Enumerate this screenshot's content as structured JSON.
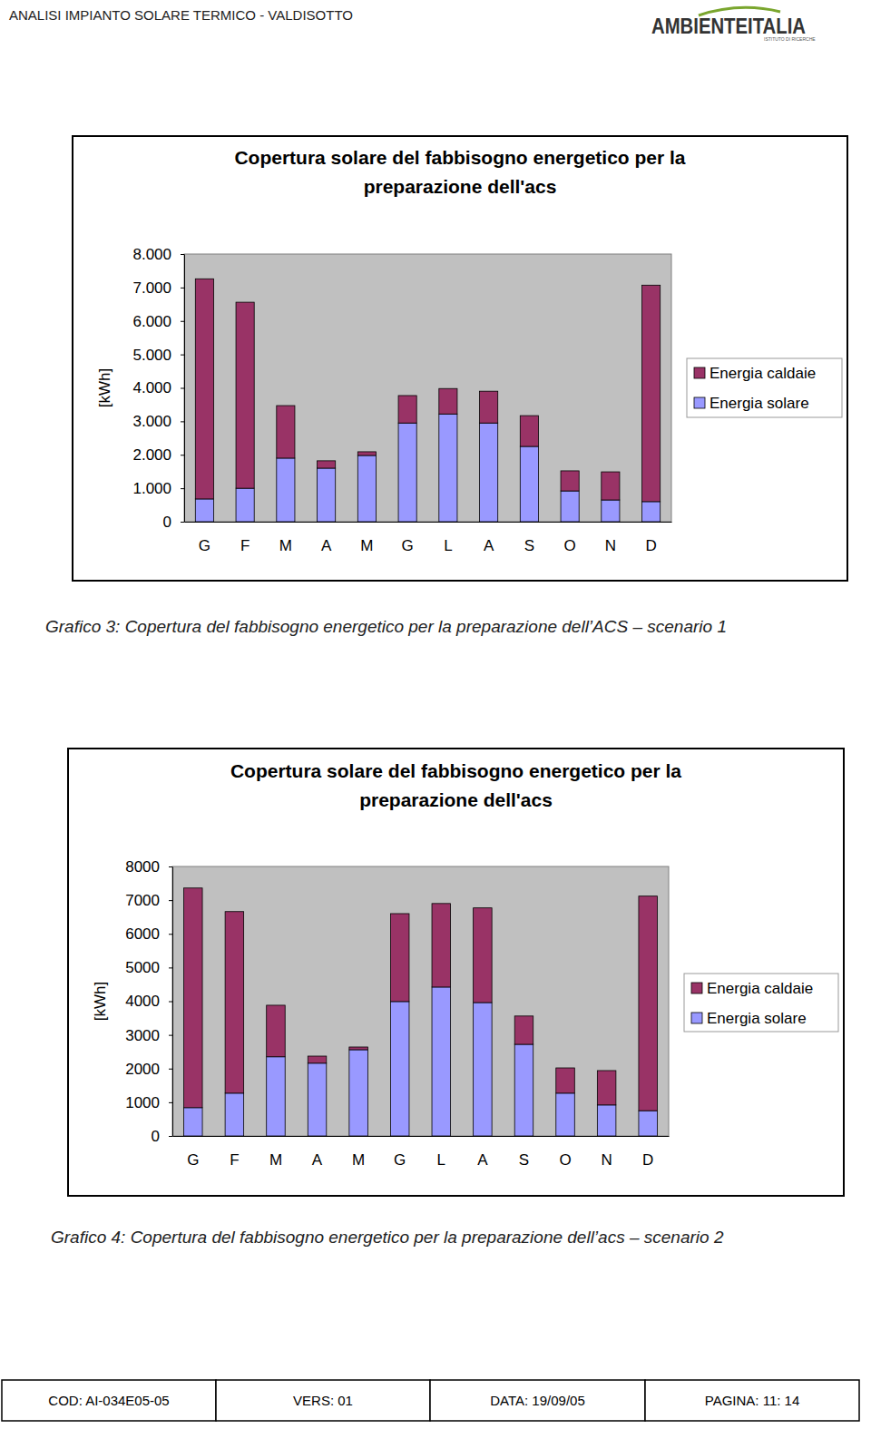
{
  "header": {
    "title": "ANALISI IMPIANTO SOLARE TERMICO - VALDISOTTO",
    "logo": "AMBIENTEITALIA",
    "logo_subtitle": "ISTITUTO DI RICERCHE"
  },
  "chart_data": [
    {
      "type": "bar",
      "stacked": true,
      "title": "Copertura solare del fabbisogno energetico per la preparazione dell'acs",
      "y_label": "[kWh]",
      "categories": [
        "G",
        "F",
        "M",
        "A",
        "M",
        "G",
        "L",
        "A",
        "S",
        "O",
        "N",
        "D"
      ],
      "series": [
        {
          "name": "Energia caldaie",
          "color": "#993366",
          "values": [
            6580,
            5560,
            1570,
            220,
            110,
            820,
            760,
            950,
            920,
            600,
            840,
            6470
          ]
        },
        {
          "name": "Energia solare",
          "color": "#9999ff",
          "values": [
            680,
            1000,
            1900,
            1600,
            1980,
            2950,
            3220,
            2950,
            2250,
            920,
            650,
            600
          ]
        }
      ],
      "ylim": [
        0,
        8000
      ],
      "yticks": [
        0,
        {
          "value": 1000,
          "label": "1.000"
        },
        {
          "value": 2000,
          "label": "2.000"
        },
        {
          "value": 3000,
          "label": "3.000"
        },
        {
          "value": 4000,
          "label": "4.000"
        },
        {
          "value": 5000,
          "label": "5.000"
        },
        {
          "value": 6000,
          "label": "6.000"
        },
        {
          "value": 7000,
          "label": "7.000"
        },
        {
          "value": 8000,
          "label": "8.000"
        }
      ],
      "grid": false,
      "legend": "right"
    },
    {
      "type": "bar",
      "stacked": true,
      "title": "Copertura solare del fabbisogno energetico per la preparazione dell'acs",
      "y_label": "[kWh]",
      "categories": [
        "G",
        "F",
        "M",
        "A",
        "M",
        "G",
        "L",
        "A",
        "S",
        "O",
        "N",
        "D"
      ],
      "series": [
        {
          "name": "Energia caldaie",
          "color": "#993366",
          "values": [
            6520,
            5390,
            1530,
            210,
            80,
            2610,
            2480,
            2810,
            840,
            750,
            1020,
            6370
          ]
        },
        {
          "name": "Energia solare",
          "color": "#9999ff",
          "values": [
            840,
            1270,
            2350,
            2160,
            2560,
            3990,
            4420,
            3960,
            2720,
            1270,
            920,
            750
          ]
        }
      ],
      "ylim": [
        0,
        8000
      ],
      "yticks": [
        0,
        1000,
        2000,
        3000,
        4000,
        5000,
        6000,
        7000,
        8000
      ],
      "grid": false,
      "legend": "right"
    }
  ],
  "captions": [
    "Grafico 3: Copertura del fabbisogno energetico per la preparazione dell’ACS – scenario 1",
    "Grafico 4: Copertura del fabbisogno energetico per la preparazione dell’acs – scenario 2"
  ],
  "footer": [
    "COD: AI-034E05-05",
    "VERS: 01",
    "DATA: 19/09/05",
    "PAGINA: 11: 14"
  ]
}
